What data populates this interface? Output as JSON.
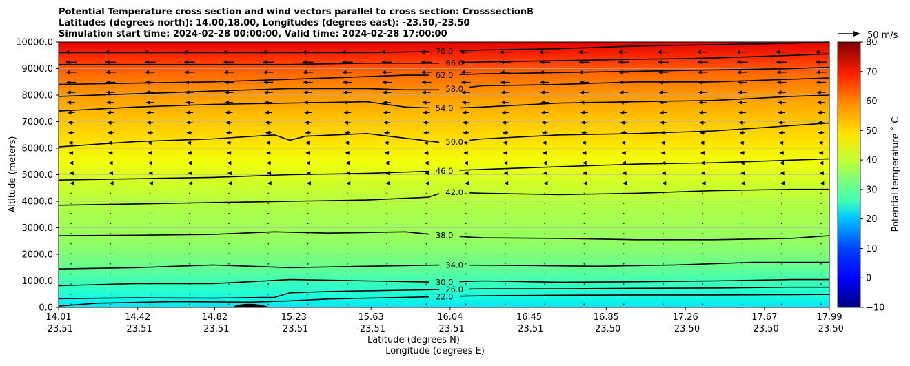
{
  "chart_data": {
    "type": "cross-section-contour",
    "title_lines": [
      "Potential Temperature cross section and wind vectors parallel to cross section: CrosssectionB",
      "Latitudes (degrees north): 14.00,18.00, Longitudes (degrees east): -23.50,-23.50",
      "Simulation start time: 2024-02-28 00:00:00, Valid time: 2024-02-28 17:00:00"
    ],
    "xlabel": "Latitude (degrees N)",
    "xlabel2": "Longitude (degrees E)",
    "ylabel": "Altitude (meters)",
    "ylim": [
      0,
      10000
    ],
    "y_ticks": [
      {
        "value": 0,
        "label": "0.0"
      },
      {
        "value": 1000,
        "label": "1000.0"
      },
      {
        "value": 2000,
        "label": "2000.0"
      },
      {
        "value": 3000,
        "label": "3000.0"
      },
      {
        "value": 4000,
        "label": "4000.0"
      },
      {
        "value": 5000,
        "label": "5000.0"
      },
      {
        "value": 6000,
        "label": "6000.0"
      },
      {
        "value": 7000,
        "label": "7000.0"
      },
      {
        "value": 8000,
        "label": "8000.0"
      },
      {
        "value": 9000,
        "label": "9000.0"
      },
      {
        "value": 10000,
        "label": "10000.0"
      }
    ],
    "x_ticks": [
      {
        "lat": "14.01",
        "lon": "-23.51",
        "frac": 0.0
      },
      {
        "lat": "14.42",
        "lon": "-23.51",
        "frac": 0.1026
      },
      {
        "lat": "14.82",
        "lon": "-23.51",
        "frac": 0.2026
      },
      {
        "lat": "15.23",
        "lon": "-23.51",
        "frac": 0.3053
      },
      {
        "lat": "15.63",
        "lon": "-23.51",
        "frac": 0.4053
      },
      {
        "lat": "16.04",
        "lon": "-23.51",
        "frac": 0.5079
      },
      {
        "lat": "16.45",
        "lon": "-23.51",
        "frac": 0.6105
      },
      {
        "lat": "16.85",
        "lon": "-23.50",
        "frac": 0.7105
      },
      {
        "lat": "17.26",
        "lon": "-23.50",
        "frac": 0.8132
      },
      {
        "lat": "17.67",
        "lon": "-23.50",
        "frac": 0.9158
      },
      {
        "lat": "17.99",
        "lon": "-23.50",
        "frac": 1.0
      }
    ],
    "grid": "horizontal",
    "colorbar": {
      "label": "Potential temperature ˚ C",
      "range": [
        -10,
        80
      ],
      "ticks": [
        -10,
        0,
        10,
        20,
        30,
        40,
        50,
        60,
        70,
        80
      ],
      "colormap": "jet"
    },
    "wind_reference": {
      "label": "50 m/s",
      "speed": 50
    },
    "contours": [
      {
        "label": "22.0",
        "value": 22,
        "points": [
          [
            0,
            50
          ],
          [
            0.05,
            160
          ],
          [
            0.15,
            220
          ],
          [
            0.25,
            200
          ],
          [
            0.3,
            250
          ],
          [
            0.35,
            320
          ],
          [
            0.45,
            380
          ],
          [
            0.55,
            440
          ],
          [
            0.65,
            460
          ],
          [
            0.75,
            470
          ],
          [
            0.85,
            470
          ],
          [
            0.95,
            480
          ],
          [
            1,
            490
          ]
        ]
      },
      {
        "label": "26.0",
        "value": 26,
        "points": [
          [
            0,
            330
          ],
          [
            0.1,
            360
          ],
          [
            0.2,
            350
          ],
          [
            0.28,
            380
          ],
          [
            0.3,
            550
          ],
          [
            0.35,
            600
          ],
          [
            0.45,
            650
          ],
          [
            0.55,
            700
          ],
          [
            0.65,
            700
          ],
          [
            0.75,
            720
          ],
          [
            0.85,
            730
          ],
          [
            0.95,
            760
          ],
          [
            1,
            760
          ]
        ]
      },
      {
        "label": "30.0",
        "value": 30,
        "points": [
          [
            0,
            820
          ],
          [
            0.1,
            900
          ],
          [
            0.2,
            900
          ],
          [
            0.3,
            1050
          ],
          [
            0.4,
            1000
          ],
          [
            0.5,
            950
          ],
          [
            0.55,
            1000
          ],
          [
            0.65,
            950
          ],
          [
            0.75,
            970
          ],
          [
            0.85,
            1000
          ],
          [
            0.95,
            1050
          ],
          [
            1,
            1050
          ]
        ]
      },
      {
        "label": "34.0",
        "value": 34,
        "points": [
          [
            0,
            1450
          ],
          [
            0.1,
            1500
          ],
          [
            0.2,
            1600
          ],
          [
            0.3,
            1500
          ],
          [
            0.4,
            1550
          ],
          [
            0.5,
            1600
          ],
          [
            0.6,
            1580
          ],
          [
            0.7,
            1550
          ],
          [
            0.8,
            1600
          ],
          [
            0.9,
            1700
          ],
          [
            1,
            1700
          ]
        ]
      },
      {
        "label": "38.0",
        "value": 38,
        "points": [
          [
            0,
            2700
          ],
          [
            0.1,
            2720
          ],
          [
            0.2,
            2750
          ],
          [
            0.28,
            2850
          ],
          [
            0.35,
            2800
          ],
          [
            0.45,
            2850
          ],
          [
            0.5,
            2700
          ],
          [
            0.55,
            2620
          ],
          [
            0.65,
            2600
          ],
          [
            0.75,
            2550
          ],
          [
            0.85,
            2550
          ],
          [
            0.95,
            2600
          ],
          [
            1,
            2700
          ]
        ]
      },
      {
        "label": "42.0",
        "value": 42,
        "points": [
          [
            0,
            3850
          ],
          [
            0.1,
            3900
          ],
          [
            0.2,
            3950
          ],
          [
            0.3,
            4000
          ],
          [
            0.4,
            4050
          ],
          [
            0.48,
            4150
          ],
          [
            0.5,
            4350
          ],
          [
            0.55,
            4300
          ],
          [
            0.65,
            4250
          ],
          [
            0.75,
            4300
          ],
          [
            0.85,
            4400
          ],
          [
            0.95,
            4450
          ],
          [
            1,
            4450
          ]
        ]
      },
      {
        "label": "46.0",
        "value": 46,
        "points": [
          [
            0,
            4800
          ],
          [
            0.1,
            4850
          ],
          [
            0.2,
            4900
          ],
          [
            0.3,
            5000
          ],
          [
            0.4,
            5050
          ],
          [
            0.5,
            5150
          ],
          [
            0.55,
            5200
          ],
          [
            0.65,
            5300
          ],
          [
            0.75,
            5400
          ],
          [
            0.85,
            5450
          ],
          [
            0.95,
            5550
          ],
          [
            1,
            5600
          ]
        ]
      },
      {
        "label": "50.0",
        "value": 50,
        "points": [
          [
            0,
            6050
          ],
          [
            0.1,
            6250
          ],
          [
            0.2,
            6350
          ],
          [
            0.28,
            6500
          ],
          [
            0.3,
            6300
          ],
          [
            0.32,
            6450
          ],
          [
            0.4,
            6550
          ],
          [
            0.5,
            6200
          ],
          [
            0.55,
            6350
          ],
          [
            0.65,
            6500
          ],
          [
            0.75,
            6550
          ],
          [
            0.85,
            6650
          ],
          [
            0.95,
            6850
          ],
          [
            1,
            6950
          ]
        ]
      },
      {
        "label": "54.0",
        "value": 54,
        "points": [
          [
            0,
            7400
          ],
          [
            0.1,
            7550
          ],
          [
            0.2,
            7650
          ],
          [
            0.3,
            7700
          ],
          [
            0.4,
            7750
          ],
          [
            0.45,
            7550
          ],
          [
            0.5,
            7500
          ],
          [
            0.55,
            7550
          ],
          [
            0.65,
            7700
          ],
          [
            0.75,
            7750
          ],
          [
            0.85,
            7800
          ],
          [
            0.95,
            7950
          ],
          [
            1,
            8000
          ]
        ]
      },
      {
        "label": "58.0",
        "value": 58,
        "points": [
          [
            0,
            7950
          ],
          [
            0.1,
            8050
          ],
          [
            0.2,
            8150
          ],
          [
            0.3,
            8250
          ],
          [
            0.4,
            8250
          ],
          [
            0.45,
            8200
          ],
          [
            0.5,
            8200
          ],
          [
            0.55,
            8350
          ],
          [
            0.65,
            8400
          ],
          [
            0.75,
            8500
          ],
          [
            0.85,
            8500
          ],
          [
            0.95,
            8600
          ],
          [
            1,
            8650
          ]
        ]
      },
      {
        "label": "62.0",
        "value": 62,
        "points": [
          [
            0,
            8400
          ],
          [
            0.1,
            8450
          ],
          [
            0.2,
            8500
          ],
          [
            0.3,
            8600
          ],
          [
            0.4,
            8700
          ],
          [
            0.45,
            8750
          ],
          [
            0.5,
            8750
          ],
          [
            0.55,
            8800
          ],
          [
            0.65,
            8850
          ],
          [
            0.75,
            8900
          ],
          [
            0.85,
            8950
          ],
          [
            0.95,
            9000
          ],
          [
            1,
            9050
          ]
        ]
      },
      {
        "label": "66.0",
        "value": 66,
        "points": [
          [
            0,
            9150
          ],
          [
            0.1,
            9150
          ],
          [
            0.2,
            9150
          ],
          [
            0.3,
            9150
          ],
          [
            0.4,
            9200
          ],
          [
            0.5,
            9200
          ],
          [
            0.55,
            9250
          ],
          [
            0.65,
            9300
          ],
          [
            0.75,
            9350
          ],
          [
            0.85,
            9400
          ],
          [
            0.95,
            9500
          ],
          [
            1,
            9550
          ]
        ]
      },
      {
        "label": "70.0",
        "value": 70,
        "points": [
          [
            0,
            9600
          ],
          [
            0.1,
            9600
          ],
          [
            0.2,
            9600
          ],
          [
            0.3,
            9600
          ],
          [
            0.4,
            9600
          ],
          [
            0.5,
            9650
          ],
          [
            0.55,
            9700
          ],
          [
            0.65,
            9750
          ],
          [
            0.75,
            9850
          ],
          [
            0.85,
            9900
          ],
          [
            0.95,
            9950
          ],
          [
            1,
            10000
          ]
        ]
      }
    ],
    "terrain": {
      "peak_frac": 0.25,
      "peak_height": 180,
      "half_width_frac": 0.025
    }
  }
}
